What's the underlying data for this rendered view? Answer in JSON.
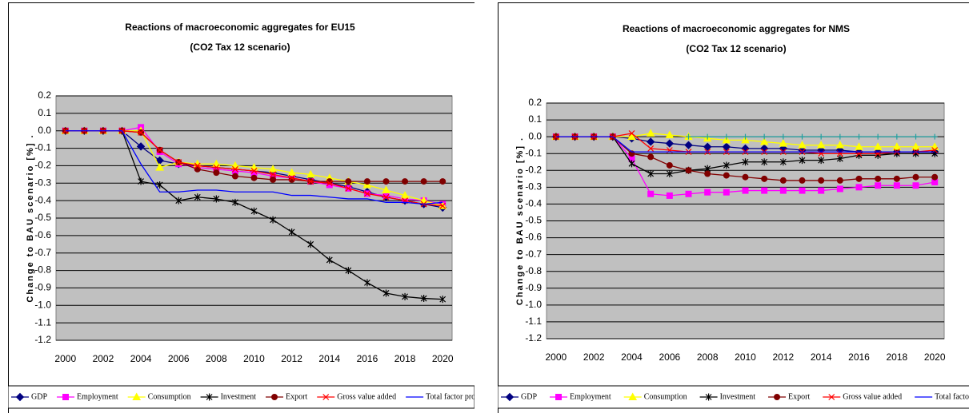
{
  "chart_data": [
    {
      "type": "line",
      "title": "Reactions of macroeconomic aggregates for EU15",
      "subtitle": "(CO2 Tax 12 scenario)",
      "y_label": "Change to BAU scenario [%] .",
      "categories": [
        "2000",
        null,
        "2002",
        null,
        "2004",
        null,
        "2006",
        null,
        "2008",
        null,
        "2010",
        null,
        "2012",
        null,
        "2014",
        null,
        "2016",
        null,
        "2018",
        null,
        "2020"
      ],
      "ylim": [
        -1.2,
        0.2
      ],
      "yticks": [
        0.2,
        0.1,
        {
          "value": 0,
          "label": "0.0"
        },
        -0.1,
        -0.2,
        -0.3,
        -0.4,
        -0.5,
        -0.6,
        -0.7,
        -0.8,
        -0.9,
        {
          "value": -1,
          "label": "-1.0"
        },
        -1.1,
        -1.2
      ],
      "grid": true,
      "legend": "bottom",
      "background": "#c0c0c0",
      "series": [
        {
          "name": "GDP",
          "color": "#000080",
          "marker": "diamond",
          "values": [
            0,
            0,
            0,
            0,
            -0.09,
            -0.17,
            -0.19,
            -0.2,
            -0.21,
            -0.22,
            -0.23,
            -0.24,
            -0.26,
            -0.28,
            -0.3,
            -0.32,
            -0.35,
            -0.38,
            -0.4,
            -0.42,
            -0.44
          ]
        },
        {
          "name": "Employment",
          "color": "#ff00ff",
          "marker": "square",
          "values": [
            0,
            0,
            0,
            0,
            0.02,
            -0.12,
            -0.19,
            -0.21,
            -0.22,
            -0.23,
            -0.24,
            -0.26,
            -0.27,
            -0.29,
            -0.31,
            -0.33,
            -0.36,
            -0.37,
            -0.39,
            -0.4,
            -0.42
          ]
        },
        {
          "name": "Consumption",
          "color": "#ffff00",
          "marker": "triangle",
          "values": [
            0,
            0,
            0,
            0,
            0,
            -0.21,
            -0.18,
            -0.19,
            -0.19,
            -0.2,
            -0.21,
            -0.22,
            -0.24,
            -0.25,
            -0.27,
            -0.29,
            -0.31,
            -0.34,
            -0.37,
            -0.4,
            -0.43
          ]
        },
        {
          "name": "Investment",
          "color": "#000000",
          "marker": "star",
          "values": [
            0,
            0,
            0,
            0,
            -0.29,
            -0.31,
            -0.4,
            -0.38,
            -0.39,
            -0.41,
            -0.46,
            -0.51,
            -0.58,
            -0.65,
            -0.74,
            -0.8,
            -0.87,
            -0.93,
            -0.95,
            -0.96,
            -0.965
          ]
        },
        {
          "name": "Export",
          "color": "#800000",
          "marker": "circle",
          "values": [
            0,
            0,
            0,
            0,
            -0.01,
            -0.11,
            -0.18,
            -0.22,
            -0.24,
            -0.26,
            -0.27,
            -0.28,
            -0.28,
            -0.29,
            -0.29,
            -0.29,
            -0.29,
            -0.29,
            -0.29,
            -0.29,
            -0.29
          ]
        },
        {
          "name": "Gross value added",
          "color": "#ff0000",
          "marker": "x",
          "values": [
            0,
            0,
            0,
            0,
            -0.01,
            -0.11,
            -0.18,
            -0.2,
            -0.21,
            -0.22,
            -0.23,
            -0.25,
            -0.27,
            -0.29,
            -0.3,
            -0.33,
            -0.36,
            -0.38,
            -0.4,
            -0.42,
            -0.43
          ]
        },
        {
          "name": "Total factor productivity",
          "color": "#0000ff",
          "marker": "none",
          "values": [
            0,
            0,
            0,
            0,
            -0.19,
            -0.35,
            -0.35,
            -0.34,
            -0.34,
            -0.35,
            -0.35,
            -0.35,
            -0.37,
            -0.37,
            -0.38,
            -0.39,
            -0.39,
            -0.41,
            -0.41,
            -0.42,
            -0.41
          ]
        }
      ]
    },
    {
      "type": "line",
      "title": "Reactions of macroeconomic aggregates for NMS",
      "subtitle": "(CO2 Tax 12 scenario)",
      "y_label": "Change to BAU scenario [%] .",
      "categories": [
        "2000",
        null,
        "2002",
        null,
        "2004",
        null,
        "2006",
        null,
        "2008",
        null,
        "2010",
        null,
        "2012",
        null,
        "2014",
        null,
        "2016",
        null,
        "2018",
        null,
        "2020"
      ],
      "ylim": [
        -1.2,
        0.2
      ],
      "yticks": [
        0.2,
        0.1,
        {
          "value": 0,
          "label": "0.0"
        },
        -0.1,
        -0.2,
        -0.3,
        -0.4,
        -0.5,
        -0.6,
        -0.7,
        -0.8,
        -0.9,
        {
          "value": -1,
          "label": "-1.0"
        },
        -1.1,
        -1.2
      ],
      "grid": true,
      "legend": "bottom",
      "background": "#c0c0c0",
      "series": [
        {
          "name": "GDP",
          "color": "#000080",
          "marker": "diamond",
          "values": [
            0,
            0,
            0,
            0,
            -0.01,
            -0.03,
            -0.04,
            -0.05,
            -0.06,
            -0.06,
            -0.07,
            -0.07,
            -0.07,
            -0.08,
            -0.08,
            -0.08,
            -0.09,
            -0.09,
            -0.09,
            -0.09,
            -0.09
          ]
        },
        {
          "name": "Employment",
          "color": "#ff00ff",
          "marker": "square",
          "values": [
            0,
            0,
            0,
            0,
            -0.13,
            -0.34,
            -0.35,
            -0.34,
            -0.33,
            -0.33,
            -0.32,
            -0.32,
            -0.32,
            -0.32,
            -0.32,
            -0.31,
            -0.3,
            -0.29,
            -0.29,
            -0.29,
            -0.27
          ]
        },
        {
          "name": "Consumption",
          "color": "#ffff00",
          "marker": "triangle",
          "values": [
            0,
            0,
            0,
            0,
            0,
            0.02,
            0.01,
            0,
            -0.01,
            -0.02,
            -0.02,
            -0.03,
            -0.04,
            -0.05,
            -0.05,
            -0.05,
            -0.06,
            -0.06,
            -0.06,
            -0.06,
            -0.06
          ]
        },
        {
          "name": "Investment",
          "color": "#000000",
          "marker": "star",
          "values": [
            0,
            0,
            0,
            0,
            -0.16,
            -0.22,
            -0.22,
            -0.2,
            -0.19,
            -0.17,
            -0.15,
            -0.15,
            -0.15,
            -0.14,
            -0.14,
            -0.13,
            -0.11,
            -0.11,
            -0.1,
            -0.1,
            -0.1
          ]
        },
        {
          "name": "Export",
          "color": "#800000",
          "marker": "circle",
          "values": [
            0,
            0,
            0,
            0,
            -0.1,
            -0.12,
            -0.17,
            -0.2,
            -0.22,
            -0.23,
            -0.24,
            -0.25,
            -0.26,
            -0.26,
            -0.26,
            -0.26,
            -0.25,
            -0.25,
            -0.25,
            -0.24,
            -0.24
          ]
        },
        {
          "name": "Gross value added",
          "color": "#ff0000",
          "marker": "x",
          "values": [
            0,
            0,
            0,
            0,
            0.02,
            -0.07,
            -0.08,
            -0.09,
            -0.09,
            -0.09,
            -0.09,
            -0.09,
            -0.09,
            -0.09,
            -0.1,
            -0.1,
            -0.1,
            -0.1,
            -0.09,
            -0.09,
            -0.08
          ]
        },
        {
          "name": "Total factor productivity",
          "color": "#0000ff",
          "marker": "none",
          "values": [
            0,
            0,
            0,
            0,
            -0.09,
            -0.09,
            -0.09,
            -0.09,
            -0.09,
            -0.09,
            -0.09,
            -0.09,
            -0.09,
            -0.09,
            -0.09,
            -0.09,
            -0.09,
            -0.09,
            -0.09,
            -0.09,
            -0.09
          ]
        },
        {
          "color": "#20a0a0",
          "marker": "plus",
          "values": [
            null,
            null,
            null,
            null,
            null,
            null,
            null,
            0,
            0,
            0,
            0,
            0,
            0,
            0,
            0,
            0,
            0,
            0,
            0,
            0,
            0
          ]
        }
      ]
    }
  ]
}
